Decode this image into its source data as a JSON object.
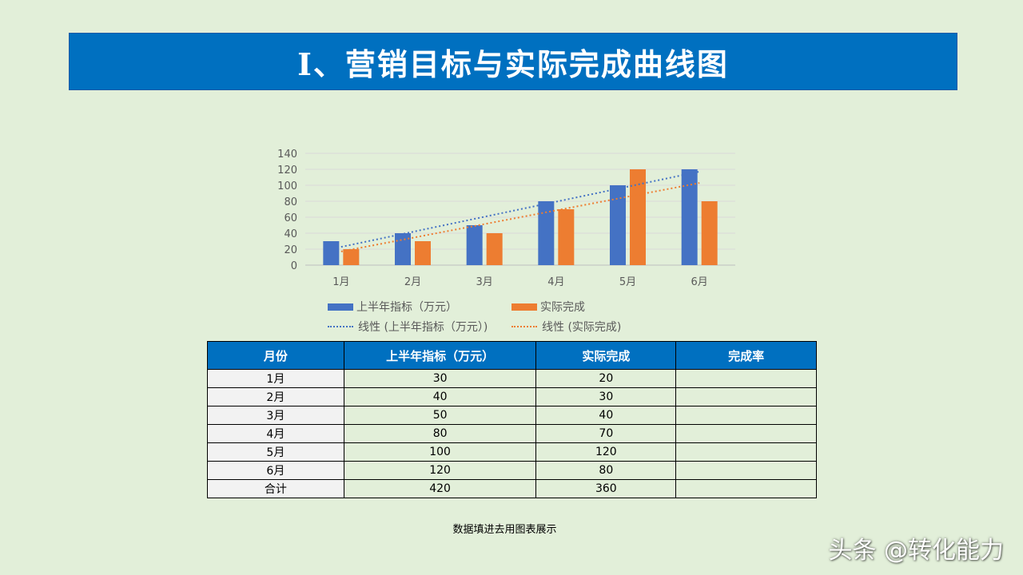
{
  "title": "Ⅰ、营销目标与实际完成曲线图",
  "chart_data": {
    "type": "bar",
    "categories": [
      "1月",
      "2月",
      "3月",
      "4月",
      "5月",
      "6月"
    ],
    "series": [
      {
        "name": "上半年指标（万元）",
        "values": [
          30,
          40,
          50,
          80,
          100,
          120
        ],
        "color": "#4472c4"
      },
      {
        "name": "实际完成",
        "values": [
          20,
          30,
          40,
          70,
          120,
          80
        ],
        "color": "#ed7d31"
      }
    ],
    "trendlines": [
      {
        "name": "线性 (上半年指标（万元）)",
        "of": "上半年指标（万元）",
        "color": "#4472c4"
      },
      {
        "name": "线性 (实际完成)",
        "of": "实际完成",
        "color": "#ed7d31"
      }
    ],
    "ylim": [
      0,
      140
    ],
    "yticks": [
      0,
      20,
      40,
      60,
      80,
      100,
      120,
      140
    ],
    "grid": true,
    "legend": "bottom"
  },
  "table": {
    "headers": [
      "月份",
      "上半年指标（万元）",
      "实际完成",
      "完成率"
    ],
    "rows": [
      [
        "1月",
        "30",
        "20",
        ""
      ],
      [
        "2月",
        "40",
        "30",
        ""
      ],
      [
        "3月",
        "50",
        "40",
        ""
      ],
      [
        "4月",
        "80",
        "70",
        ""
      ],
      [
        "5月",
        "100",
        "120",
        ""
      ],
      [
        "6月",
        "120",
        "80",
        ""
      ],
      [
        "合计",
        "420",
        "360",
        ""
      ]
    ]
  },
  "note": "数据填进去用图表展示",
  "watermark": "头条 @转化能力"
}
